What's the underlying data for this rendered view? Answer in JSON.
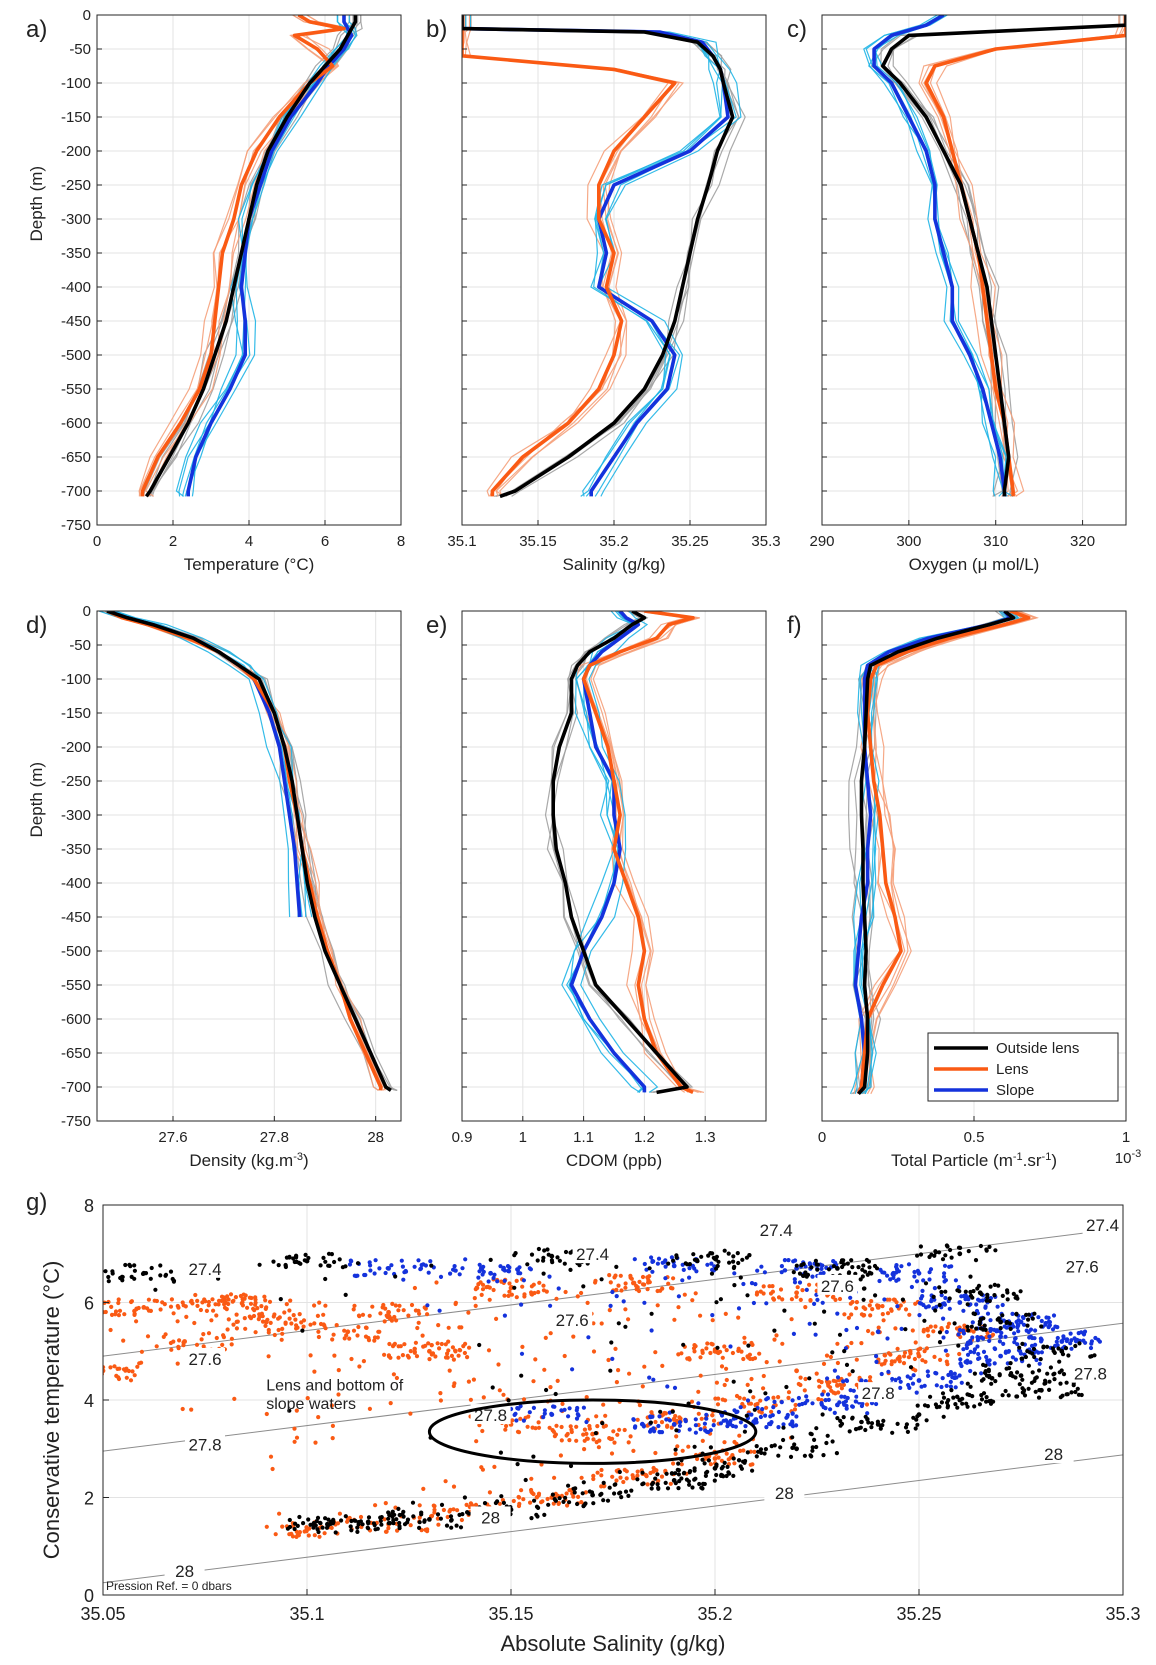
{
  "figure": {
    "colors": {
      "outside": "#000000",
      "lens": "#fa5a14",
      "slope": "#1432dc",
      "outside_thin": "#a0a0a0",
      "lens_thin": "#f5a07a",
      "slope_thin": "#1eb4e6"
    },
    "legend": {
      "entries": [
        "Outside lens",
        "Lens",
        "Slope"
      ],
      "panel": "f"
    }
  },
  "chart_data": [
    {
      "panel": "a)",
      "type": "line",
      "xlabel": "Temperature (°C)",
      "ylabel": "Depth (m)",
      "xlim": [
        0,
        8
      ],
      "ylim": [
        -750,
        0
      ],
      "xticks": [
        "0",
        "2",
        "4",
        "6",
        "8"
      ],
      "yticks": [
        "0",
        "-50",
        "-100",
        "-150",
        "-200",
        "-250",
        "-300",
        "-350",
        "-400",
        "-450",
        "-500",
        "-550",
        "-600",
        "-650",
        "-700",
        "-750"
      ],
      "grid": true,
      "depth": [
        0,
        -10,
        -20,
        -30,
        -50,
        -75,
        -100,
        -150,
        -200,
        -250,
        -300,
        -350,
        -400,
        -450,
        -500,
        -550,
        -600,
        -650,
        -700,
        -708
      ],
      "series": [
        {
          "name": "Outside lens",
          "values": [
            6.8,
            6.8,
            6.7,
            6.6,
            6.4,
            6.0,
            5.6,
            5.0,
            4.5,
            4.2,
            4.0,
            3.8,
            3.6,
            3.4,
            3.1,
            2.8,
            2.4,
            1.9,
            1.4,
            1.3
          ]
        },
        {
          "name": "Lens",
          "values": [
            5.3,
            5.6,
            6.5,
            5.2,
            5.8,
            6.2,
            5.6,
            4.8,
            4.2,
            3.8,
            3.6,
            3.3,
            3.2,
            3.1,
            3.0,
            2.7,
            2.2,
            1.6,
            1.2,
            1.2
          ]
        },
        {
          "name": "Slope",
          "values": [
            6.5,
            6.5,
            6.6,
            6.7,
            6.5,
            6.1,
            5.8,
            5.1,
            4.6,
            4.3,
            4.0,
            3.9,
            3.8,
            3.9,
            3.9,
            3.5,
            3.0,
            2.6,
            2.4,
            2.4
          ]
        }
      ]
    },
    {
      "panel": "b)",
      "type": "line",
      "xlabel": "Salinity (g/kg)",
      "ylabel": "",
      "xlim": [
        35.1,
        35.3
      ],
      "ylim": [
        -750,
        0
      ],
      "xticks": [
        "35.1",
        "35.15",
        "35.2",
        "35.25",
        "35.3"
      ],
      "grid": true,
      "depth": [
        0,
        -20,
        -25,
        -40,
        -60,
        -80,
        -100,
        -150,
        -200,
        -250,
        -300,
        -350,
        -400,
        -450,
        -500,
        -550,
        -600,
        -650,
        -700,
        -708
      ],
      "series": [
        {
          "name": "Outside lens",
          "values": [
            35.1,
            35.1,
            35.22,
            35.255,
            35.265,
            35.27,
            35.272,
            35.278,
            35.268,
            35.262,
            35.255,
            35.25,
            35.245,
            35.24,
            35.232,
            35.22,
            35.2,
            35.17,
            35.135,
            35.125
          ]
        },
        {
          "name": "Lens",
          "values": [
            35.1,
            35.1,
            35.1,
            35.1,
            35.1,
            35.2,
            35.24,
            35.22,
            35.2,
            35.19,
            35.19,
            35.2,
            35.195,
            35.205,
            35.2,
            35.19,
            35.17,
            35.14,
            35.12,
            35.12
          ]
        },
        {
          "name": "Slope",
          "values": [
            35.1,
            35.1,
            35.23,
            35.258,
            35.265,
            35.27,
            35.272,
            35.275,
            35.25,
            35.2,
            35.19,
            35.195,
            35.19,
            35.225,
            35.24,
            35.235,
            35.215,
            35.2,
            35.185,
            35.185
          ]
        }
      ]
    },
    {
      "panel": "c)",
      "type": "line",
      "xlabel": "Oxygen (μ mol/L)",
      "ylabel": "",
      "xlim": [
        290,
        325
      ],
      "ylim": [
        -750,
        0
      ],
      "xticks": [
        "290",
        "300",
        "310",
        "320"
      ],
      "grid": true,
      "depth": [
        0,
        -15,
        -30,
        -50,
        -75,
        -100,
        -150,
        -200,
        -250,
        -300,
        -350,
        -400,
        -450,
        -500,
        -550,
        -600,
        -650,
        -700,
        -708
      ],
      "series": [
        {
          "name": "Outside lens",
          "values": [
            325,
            325,
            300,
            298,
            297,
            299,
            302,
            304,
            306,
            307,
            308,
            309,
            309.5,
            310,
            310.5,
            311,
            311.5,
            311,
            311
          ]
        },
        {
          "name": "Lens",
          "values": [
            325,
            325,
            325,
            310,
            303,
            302,
            304,
            305,
            306,
            307,
            308,
            308.5,
            309,
            309.5,
            310,
            311,
            311.5,
            312,
            312
          ]
        },
        {
          "name": "Slope",
          "values": [
            304,
            302,
            298,
            296,
            296,
            298,
            300,
            302,
            303,
            303,
            304,
            305,
            305,
            307,
            308.5,
            309.5,
            310.5,
            311,
            311
          ]
        }
      ]
    },
    {
      "panel": "d)",
      "type": "line",
      "xlabel": "Density (kg.m^-3)",
      "ylabel": "Depth (m)",
      "xlim": [
        27.45,
        28.05
      ],
      "ylim": [
        -750,
        0
      ],
      "xticks": [
        "27.6",
        "27.8",
        "28"
      ],
      "yticks": [
        "0",
        "-50",
        "-100",
        "-150",
        "-200",
        "-250",
        "-300",
        "-350",
        "-400",
        "-450",
        "-500",
        "-550",
        "-600",
        "-650",
        "-700",
        "-750"
      ],
      "grid": true,
      "depth": [
        0,
        -10,
        -20,
        -40,
        -60,
        -80,
        -100,
        -150,
        -200,
        -250,
        -300,
        -350,
        -400,
        -450,
        -500,
        -550,
        -600,
        -650,
        -700,
        -705
      ],
      "series": [
        {
          "name": "Outside lens",
          "values": [
            27.47,
            27.51,
            27.56,
            27.64,
            27.69,
            27.73,
            27.77,
            27.8,
            27.82,
            27.835,
            27.845,
            27.855,
            27.865,
            27.88,
            27.9,
            27.93,
            27.96,
            27.99,
            28.02,
            28.03
          ]
        },
        {
          "name": "Lens",
          "values": [
            27.47,
            27.5,
            27.55,
            27.63,
            27.69,
            27.73,
            27.76,
            27.8,
            27.82,
            27.83,
            27.845,
            27.855,
            27.87,
            27.885,
            27.905,
            27.93,
            27.95,
            27.98,
            28.01,
            28.01
          ]
        },
        {
          "name": "Slope",
          "values": [
            27.47,
            27.51,
            27.56,
            27.64,
            27.69,
            27.73,
            27.76,
            27.79,
            27.81,
            27.82,
            27.83,
            27.84,
            27.845,
            27.85,
            null,
            null,
            null,
            null,
            null,
            null
          ]
        }
      ]
    },
    {
      "panel": "e)",
      "type": "line",
      "xlabel": "CDOM (ppb)",
      "ylabel": "",
      "xlim": [
        0.9,
        1.4
      ],
      "ylim": [
        -750,
        0
      ],
      "xticks": [
        "0.9",
        "1",
        "1.1",
        "1.2",
        "1.3"
      ],
      "grid": true,
      "depth": [
        0,
        -10,
        -20,
        -40,
        -60,
        -80,
        -100,
        -150,
        -200,
        -250,
        -300,
        -350,
        -400,
        -450,
        -500,
        -550,
        -600,
        -650,
        -700,
        -708
      ],
      "series": [
        {
          "name": "Outside lens",
          "values": [
            1.18,
            1.2,
            1.18,
            1.15,
            1.11,
            1.09,
            1.08,
            1.08,
            1.06,
            1.05,
            1.05,
            1.055,
            1.07,
            1.08,
            1.1,
            1.12,
            1.17,
            1.22,
            1.27,
            1.22
          ]
        },
        {
          "name": "Lens",
          "values": [
            1.2,
            1.28,
            1.24,
            1.22,
            1.16,
            1.11,
            1.1,
            1.12,
            1.14,
            1.15,
            1.16,
            1.15,
            1.17,
            1.19,
            1.2,
            1.19,
            1.2,
            1.22,
            1.26,
            1.28
          ]
        },
        {
          "name": "Slope",
          "values": [
            1.16,
            1.17,
            1.19,
            1.16,
            1.13,
            1.11,
            1.1,
            1.11,
            1.12,
            1.15,
            1.15,
            1.16,
            1.15,
            1.13,
            1.1,
            1.08,
            1.11,
            1.15,
            1.2,
            1.2
          ]
        }
      ]
    },
    {
      "panel": "f)",
      "type": "line",
      "xlabel": "Total Particle (m^-1.sr^-1)",
      "ylabel": "",
      "xunit": "x10^-3",
      "xlim": [
        0,
        1
      ],
      "ylim": [
        -750,
        0
      ],
      "xticks": [
        "0",
        "0.5",
        "1"
      ],
      "grid": true,
      "legend": "bottom-right",
      "depth": [
        0,
        -10,
        -20,
        -40,
        -60,
        -80,
        -100,
        -150,
        -200,
        -250,
        -300,
        -350,
        -400,
        -450,
        -500,
        -550,
        -600,
        -650,
        -700,
        -710
      ],
      "series": [
        {
          "name": "Outside lens",
          "values": [
            0.6,
            0.63,
            0.55,
            0.38,
            0.25,
            0.16,
            0.15,
            0.145,
            0.14,
            0.13,
            0.13,
            0.135,
            0.135,
            0.14,
            0.145,
            0.14,
            0.15,
            0.15,
            0.14,
            0.12
          ]
        },
        {
          "name": "Lens",
          "values": [
            0.62,
            0.68,
            0.6,
            0.42,
            0.28,
            0.18,
            0.16,
            0.15,
            0.16,
            0.17,
            0.19,
            0.2,
            0.21,
            0.24,
            0.26,
            0.2,
            0.15,
            0.14,
            0.13,
            0.12
          ]
        },
        {
          "name": "Slope",
          "values": [
            0.6,
            0.62,
            0.55,
            0.35,
            0.22,
            0.15,
            0.14,
            0.14,
            0.14,
            0.15,
            0.16,
            0.15,
            0.15,
            0.13,
            0.12,
            0.11,
            0.13,
            0.14,
            0.13,
            0.12
          ]
        }
      ]
    },
    {
      "panel": "g)",
      "type": "scatter",
      "xlabel": "Absolute Salinity (g/kg)",
      "ylabel": "Conservative temperature (°C)",
      "xlim": [
        35.05,
        35.3
      ],
      "ylim": [
        0,
        8
      ],
      "xticks": [
        "35.05",
        "35.1",
        "35.15",
        "35.2",
        "35.25",
        "35.3"
      ],
      "yticks": [
        "0",
        "2",
        "4",
        "6",
        "8"
      ],
      "grid": true,
      "note": "Pression Ref. = 0 dbars",
      "annotation": {
        "text_line1": "Lens and bottom of",
        "text_line2": "slope waters",
        "ellipse_center": [
          35.17,
          3.35
        ],
        "ellipse_radius": [
          0.04,
          0.65
        ]
      },
      "isopycnal_labels": [
        "27.4",
        "27.4",
        "27.4",
        "27.4",
        "27.6",
        "27.6",
        "27.6",
        "27.6",
        "27.8",
        "27.8",
        "27.8",
        "27.8",
        "28",
        "28",
        "28",
        "28"
      ],
      "series": [
        {
          "name": "Outside lens",
          "points": [
            [
              35.105,
              1.45
            ],
            [
              35.115,
              1.5
            ],
            [
              35.13,
              1.55
            ],
            [
              35.15,
              1.75
            ],
            [
              35.17,
              2.05
            ],
            [
              35.19,
              2.35
            ],
            [
              35.2,
              2.6
            ],
            [
              35.22,
              3.0
            ],
            [
              35.24,
              3.5
            ],
            [
              35.26,
              4.0
            ],
            [
              35.275,
              4.5
            ],
            [
              35.285,
              5.0
            ],
            [
              35.27,
              5.6
            ],
            [
              35.265,
              6.2
            ],
            [
              35.26,
              7.0
            ],
            [
              35.23,
              6.7
            ],
            [
              35.2,
              6.9
            ],
            [
              35.16,
              6.95
            ],
            [
              35.1,
              6.85
            ],
            [
              35.06,
              6.6
            ],
            [
              35.28,
              4.2
            ],
            [
              35.25,
              3.7
            ]
          ]
        },
        {
          "name": "Lens",
          "points": [
            [
              35.1,
              1.35
            ],
            [
              35.12,
              1.45
            ],
            [
              35.14,
              1.7
            ],
            [
              35.16,
              2.0
            ],
            [
              35.18,
              2.4
            ],
            [
              35.2,
              2.8
            ],
            [
              35.15,
              3.5
            ],
            [
              35.17,
              3.3
            ],
            [
              35.19,
              3.6
            ],
            [
              35.21,
              3.9
            ],
            [
              35.23,
              4.3
            ],
            [
              35.25,
              4.9
            ],
            [
              35.26,
              5.4
            ],
            [
              35.24,
              5.9
            ],
            [
              35.22,
              6.2
            ],
            [
              35.18,
              6.4
            ],
            [
              35.15,
              6.3
            ],
            [
              35.12,
              5.8
            ],
            [
              35.09,
              5.6
            ],
            [
              35.07,
              5.2
            ],
            [
              35.05,
              4.6
            ],
            [
              35.06,
              5.9
            ],
            [
              35.08,
              6.0
            ],
            [
              35.11,
              5.4
            ],
            [
              35.13,
              5.0
            ],
            [
              35.2,
              5.0
            ],
            [
              35.22,
              4.6
            ]
          ]
        },
        {
          "name": "Slope",
          "points": [
            [
              35.16,
              3.7
            ],
            [
              35.19,
              3.5
            ],
            [
              35.21,
              3.6
            ],
            [
              35.23,
              3.9
            ],
            [
              35.25,
              4.4
            ],
            [
              35.27,
              4.9
            ],
            [
              35.285,
              5.2
            ],
            [
              35.275,
              5.6
            ],
            [
              35.26,
              6.0
            ],
            [
              35.25,
              6.6
            ],
            [
              35.22,
              6.7
            ],
            [
              35.19,
              6.75
            ],
            [
              35.145,
              6.6
            ],
            [
              35.12,
              6.7
            ],
            [
              35.27,
              5.3
            ],
            [
              35.24,
              5.4
            ]
          ]
        }
      ]
    }
  ]
}
